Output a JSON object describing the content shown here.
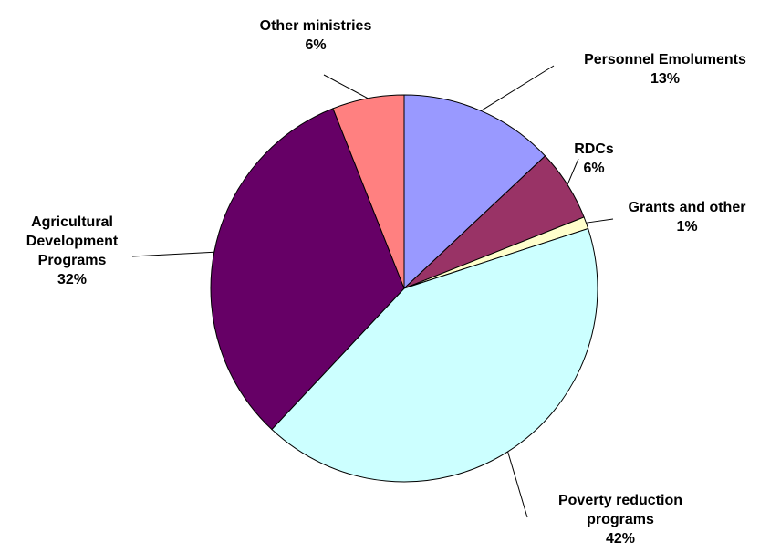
{
  "chart_data": {
    "type": "pie",
    "slices": [
      {
        "name": "Personnel Emoluments",
        "label_lines": [
          "Personnel Emoluments"
        ],
        "value": 13,
        "value_label": "13%",
        "color": "#9999FF"
      },
      {
        "name": "RDCs",
        "label_lines": [
          "RDCs"
        ],
        "value": 6,
        "value_label": "6%",
        "color": "#993366"
      },
      {
        "name": "Grants and other",
        "label_lines": [
          "Grants and other"
        ],
        "value": 1,
        "value_label": "1%",
        "color": "#FFFFCC"
      },
      {
        "name": "Poverty reduction programs",
        "label_lines": [
          "Poverty reduction",
          "programs"
        ],
        "value": 42,
        "value_label": "42%",
        "color": "#CCFFFF"
      },
      {
        "name": "Agricultural Development Programs",
        "label_lines": [
          "Agricultural",
          "Development",
          "Programs"
        ],
        "value": 32,
        "value_label": "32%",
        "color": "#660066"
      },
      {
        "name": "Other ministries",
        "label_lines": [
          "Other ministries"
        ],
        "value": 6,
        "value_label": "6%",
        "color": "#FF8080"
      }
    ],
    "start": "12 o'clock",
    "direction": "clockwise",
    "legend": "none",
    "data_labels": "outside with leader lines"
  }
}
